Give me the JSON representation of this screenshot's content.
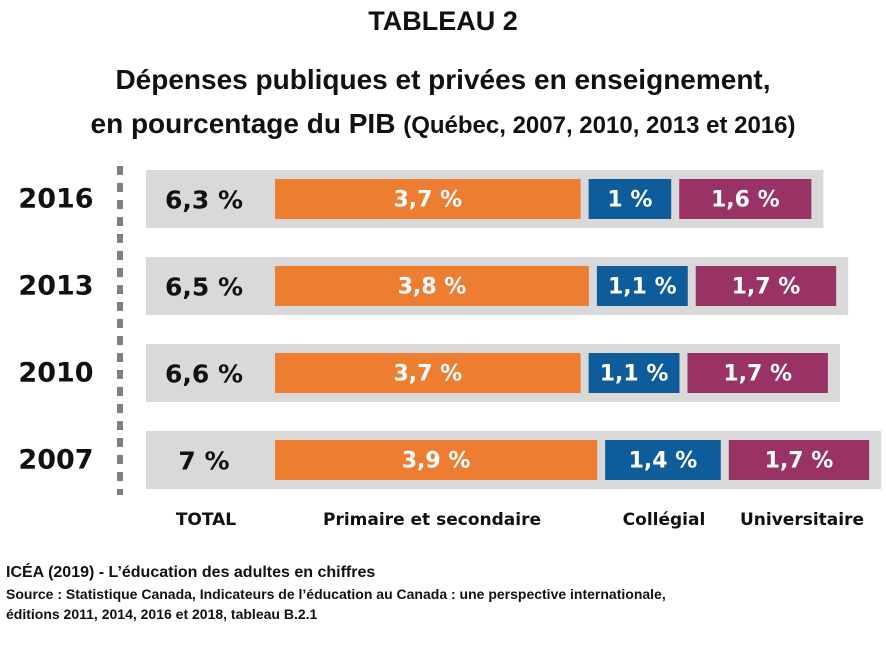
{
  "header": {
    "tableau": "TABLEAU 2",
    "title_line1": "Dépenses publiques et privées en enseignement,",
    "title_line2": "en pourcentage du PIB",
    "title_paren": "(Québec, 2007, 2010, 2013 et 2016)"
  },
  "chart_data": {
    "type": "bar",
    "orientation": "horizontal-stacked",
    "title": "Dépenses publiques et privées en enseignement, en pourcentage du PIB",
    "subtitle": "(Québec, 2007, 2010, 2013 et 2016)",
    "categories": [
      "2016",
      "2013",
      "2010",
      "2007"
    ],
    "totals_header": "TOTAL",
    "totals": [
      6.3,
      6.5,
      6.6,
      7
    ],
    "totals_labels": [
      "6,3 %",
      "6,5 %",
      "6,6 %",
      "7 %"
    ],
    "series": [
      {
        "name": "Primaire et secondaire",
        "values": [
          3.7,
          3.8,
          3.7,
          3.9
        ],
        "labels": [
          "3,7 %",
          "3,8 %",
          "3,7 %",
          "3,9 %"
        ]
      },
      {
        "name": "Collégial",
        "values": [
          1,
          1.1,
          1.1,
          1.4
        ],
        "labels": [
          "1 %",
          "1,1 %",
          "1,1 %",
          "1,4 %"
        ]
      },
      {
        "name": "Universitaire",
        "values": [
          1.6,
          1.7,
          1.7,
          1.7
        ],
        "labels": [
          "1,6 %",
          "1,7 %",
          "1,7 %",
          "1,7 %"
        ]
      }
    ],
    "colors": {
      "primaire": "#ed7d31",
      "collegial": "#0f5c9a",
      "universitaire": "#993366",
      "total_background": "#d9d9d9",
      "axis": "#808080"
    },
    "legend_placement": "bottom",
    "grid": false
  },
  "footer": {
    "line1": "ICÉA (2019) - L’éducation des adultes en chiffres",
    "line2": "Source : Statistique Canada, Indicateurs de l’éducation au Canada : une perspective internationale,",
    "line3": "éditions 2011, 2014, 2016 et 2018, tableau B.2.1"
  }
}
